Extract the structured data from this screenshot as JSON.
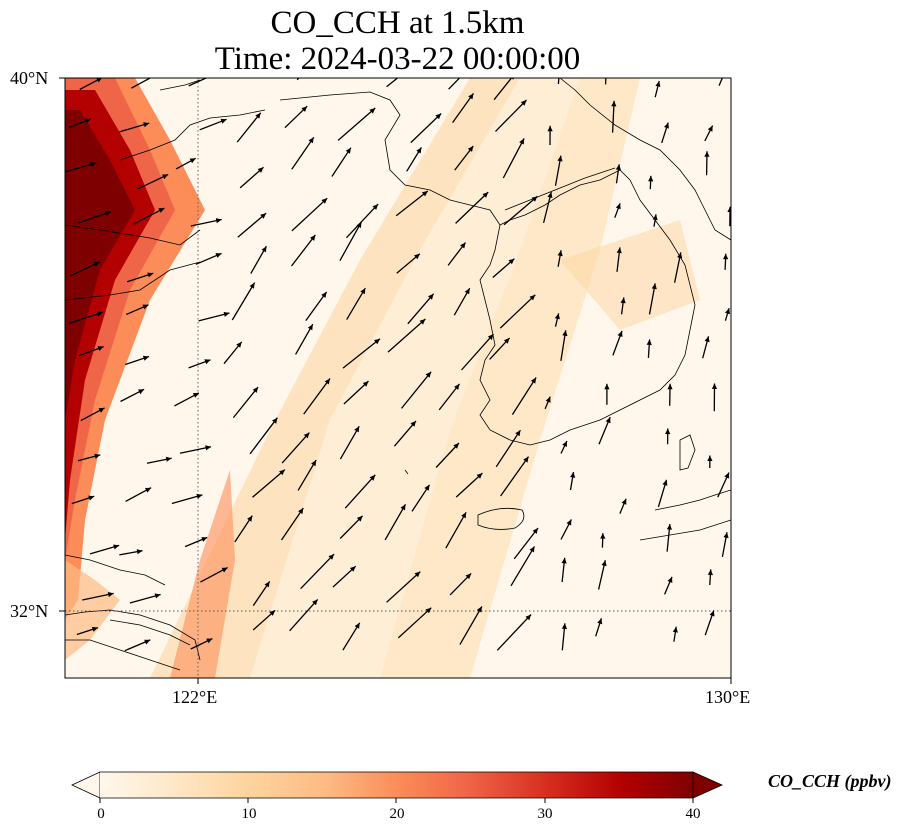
{
  "title_line1": "CO_CCH at 1.5km",
  "title_line2": "Time: 2024-03-22 00:00:00",
  "axes": {
    "lat_labels": [
      "40°N",
      "32°N"
    ],
    "lon_labels": [
      "122°E",
      "130°E"
    ],
    "lat_range": [
      31,
      40
    ],
    "lon_range": [
      120,
      130
    ],
    "gridlines": "dotted at 122°E and 32°N"
  },
  "field": {
    "variable": "CO_CCH",
    "level": "1.5km",
    "description_colormap": "white-orange-dark red (OrRd)",
    "high_values_region": "western edge near 120-121°E, exceeding 40 ppbv",
    "plume_band": "moderate values (10-25 ppbv) along a SW-NE band near 122-124.5°E"
  },
  "wind_vectors": {
    "direction": "predominantly from southwest toward northeast",
    "count_shown": 120
  },
  "colorbar": {
    "label": "CO_CCH (ppbv)",
    "ticks": [
      "0",
      "10",
      "20",
      "30",
      "40"
    ],
    "range": [
      0,
      40
    ],
    "extend": "both",
    "colors": [
      "#fff7ec",
      "#fee8c8",
      "#fdd49e",
      "#fdbb84",
      "#fc8d59",
      "#ef6548",
      "#d7301f",
      "#b30000",
      "#7f0000"
    ]
  },
  "colors": {
    "coastline": "#000000",
    "arrow": "#000000",
    "gridline": "#555555"
  }
}
